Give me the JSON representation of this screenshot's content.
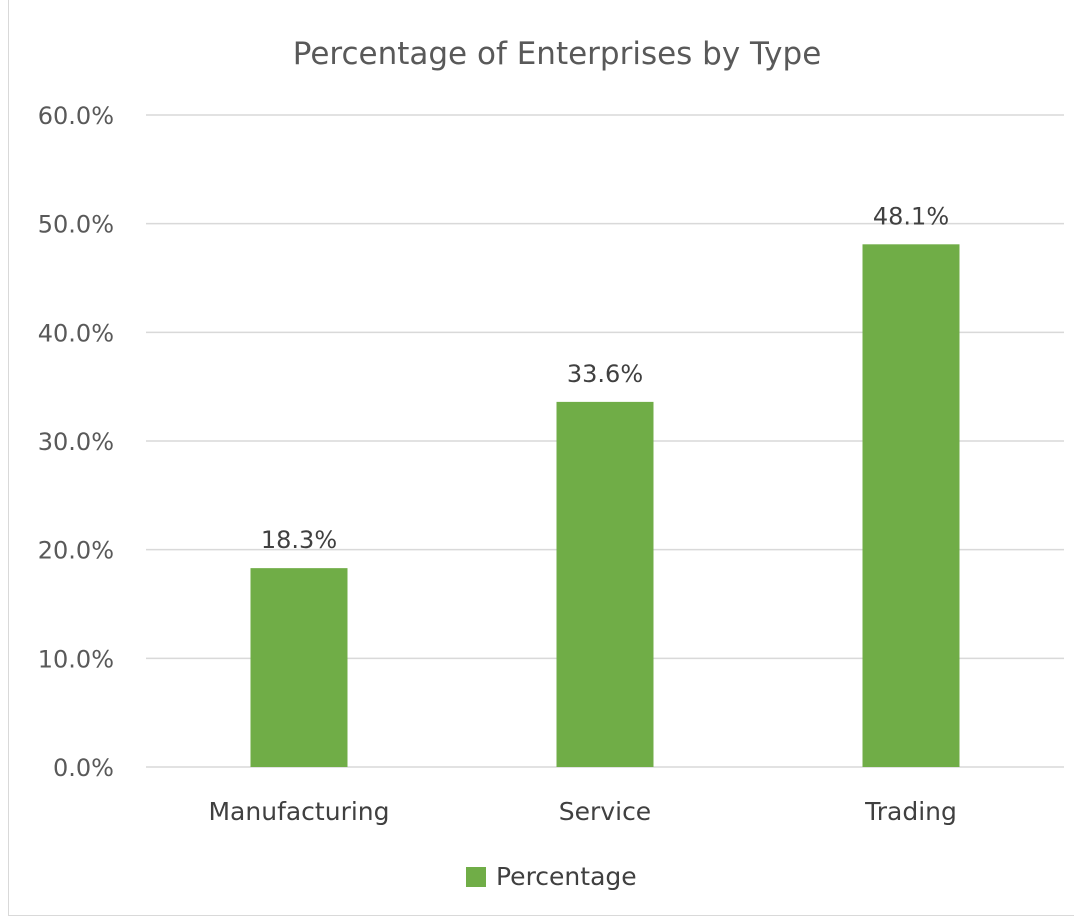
{
  "chart_data": {
    "type": "bar",
    "title": "Percentage of Enterprises by Type",
    "categories": [
      "Manufacturing",
      "Service",
      "Trading"
    ],
    "series": [
      {
        "name": "Percentage",
        "values": [
          18.3,
          33.6,
          48.1
        ],
        "color": "#70ad47"
      }
    ],
    "data_labels": [
      "18.3%",
      "33.6%",
      "48.1%"
    ],
    "ylim": [
      0,
      60
    ],
    "y_ticks": [
      "0.0%",
      "10.0%",
      "20.0%",
      "30.0%",
      "40.0%",
      "50.0%",
      "60.0%"
    ],
    "grid": true,
    "legend_position": "bottom"
  }
}
